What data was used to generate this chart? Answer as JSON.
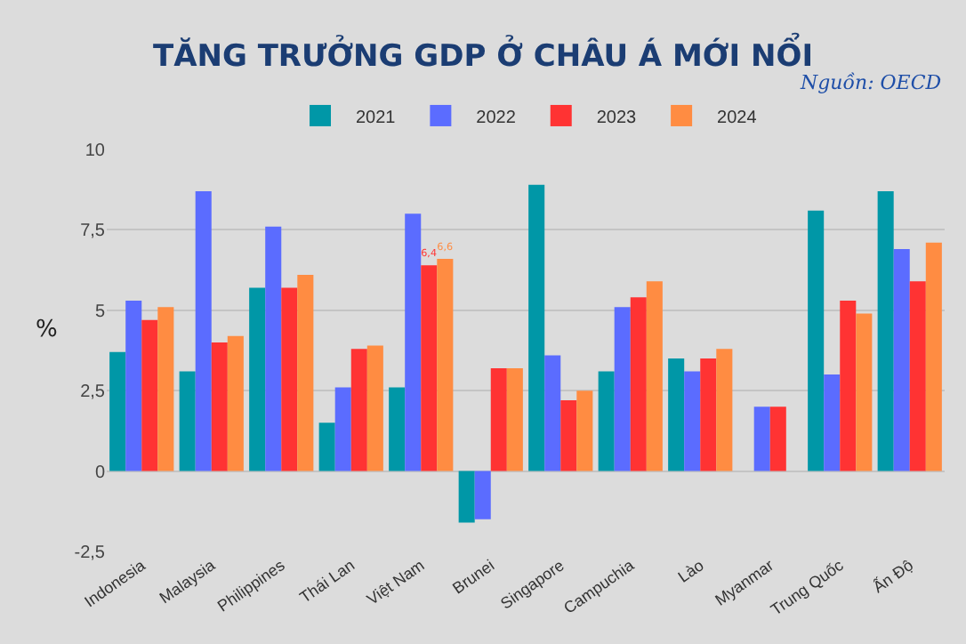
{
  "chart_data": {
    "type": "bar",
    "title": "TĂNG TRƯỞNG GDP Ở CHÂU Á MỚI NỔI",
    "ylabel": "%",
    "annotations": [
      "Nguồn: OECD"
    ],
    "categories": [
      "Indonesia",
      "Malaysia",
      "Philippines",
      "Thái Lan",
      "Việt Nam",
      "Brunei",
      "Singapore",
      "Campuchia",
      "Lào",
      "Myanmar",
      "Trung Quốc",
      "Ấn Độ"
    ],
    "series": [
      {
        "name": "2021",
        "color": "#0097a7",
        "values": [
          3.7,
          3.1,
          5.7,
          1.5,
          2.6,
          -1.6,
          8.9,
          3.1,
          3.5,
          null,
          8.1,
          8.7
        ]
      },
      {
        "name": "2022",
        "color": "#5b6cff",
        "values": [
          5.3,
          8.7,
          7.6,
          2.6,
          8.0,
          -1.5,
          3.6,
          5.1,
          3.1,
          2.0,
          3.0,
          6.9
        ]
      },
      {
        "name": "2023",
        "color": "#ff3333",
        "values": [
          4.7,
          4.0,
          5.7,
          3.8,
          6.4,
          3.2,
          2.2,
          5.4,
          3.5,
          2.0,
          5.3,
          5.9
        ],
        "value_labels": [
          null,
          null,
          null,
          null,
          "6,4",
          null,
          null,
          null,
          null,
          null,
          null,
          null
        ]
      },
      {
        "name": "2024",
        "color": "#ff8c42",
        "values": [
          5.1,
          4.2,
          6.1,
          3.9,
          6.6,
          3.2,
          2.5,
          5.9,
          3.8,
          null,
          4.9,
          7.1
        ],
        "value_labels": [
          null,
          null,
          null,
          null,
          "6,6",
          null,
          null,
          null,
          null,
          null,
          null,
          null
        ]
      }
    ],
    "ylim": [
      -2.5,
      10
    ],
    "yticks": [
      {
        "value": -2.5,
        "label": "-2,5"
      },
      0,
      {
        "value": 2.5,
        "label": "2,5"
      },
      5,
      {
        "value": 7.5,
        "label": "7,5"
      },
      10
    ],
    "grid": "y",
    "legend": "top"
  }
}
